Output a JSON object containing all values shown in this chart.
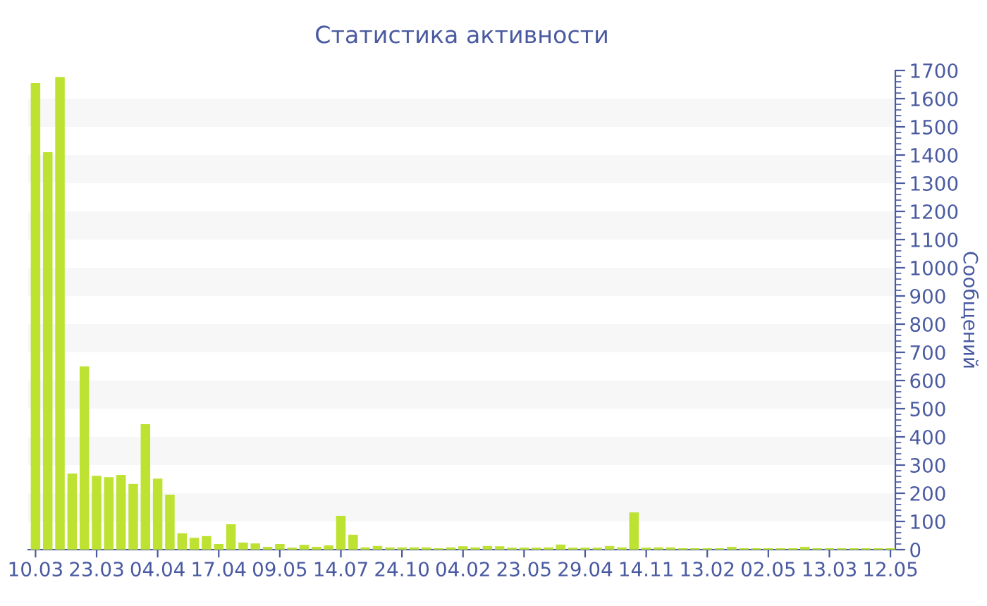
{
  "chart_data": {
    "type": "bar",
    "title": "Статистика активности",
    "ylabel": "Сообщений",
    "categories": [
      "10.03",
      null,
      null,
      null,
      null,
      "23.03",
      null,
      null,
      null,
      null,
      "04.04",
      null,
      null,
      null,
      null,
      "17.04",
      null,
      null,
      null,
      null,
      "09.05",
      null,
      null,
      null,
      null,
      "14.07",
      null,
      null,
      null,
      null,
      "24.10",
      null,
      null,
      null,
      null,
      "04.02",
      null,
      null,
      null,
      null,
      "23.05",
      null,
      null,
      null,
      null,
      "29.04",
      null,
      null,
      null,
      null,
      "14.11",
      null,
      null,
      null,
      null,
      "13.02",
      null,
      null,
      null,
      null,
      "02.05",
      null,
      null,
      null,
      null,
      "13.03",
      null,
      null,
      null,
      null,
      "12.05"
    ],
    "values": [
      1655,
      1410,
      1677,
      270,
      650,
      262,
      257,
      265,
      233,
      445,
      252,
      195,
      58,
      42,
      48,
      20,
      90,
      25,
      22,
      10,
      20,
      7,
      17,
      10,
      15,
      120,
      53,
      8,
      13,
      8,
      8,
      8,
      8,
      5,
      8,
      12,
      8,
      13,
      12,
      7,
      7,
      7,
      8,
      18,
      7,
      7,
      7,
      13,
      8,
      132,
      7,
      8,
      8,
      5,
      5,
      5,
      5,
      10,
      5,
      5,
      5,
      5,
      5,
      10,
      5,
      5,
      5,
      5,
      5,
      5,
      5
    ],
    "color": "#bde232",
    "ylim": [
      0,
      1700
    ],
    "yticks": [
      0,
      100,
      200,
      300,
      400,
      500,
      600,
      700,
      800,
      900,
      1000,
      1100,
      1200,
      1300,
      1400,
      1500,
      1600,
      1700
    ],
    "bands": [
      {
        "axis": "y",
        "from": 100,
        "to": 200,
        "color": "#f7f7f7"
      },
      {
        "axis": "y",
        "from": 300,
        "to": 400,
        "color": "#f7f7f7"
      },
      {
        "axis": "y",
        "from": 500,
        "to": 600,
        "color": "#f7f7f7"
      },
      {
        "axis": "y",
        "from": 700,
        "to": 800,
        "color": "#f7f7f7"
      },
      {
        "axis": "y",
        "from": 900,
        "to": 1000,
        "color": "#f7f7f7"
      },
      {
        "axis": "y",
        "from": 1100,
        "to": 1200,
        "color": "#f7f7f7"
      },
      {
        "axis": "y",
        "from": 1300,
        "to": 1400,
        "color": "#f7f7f7"
      },
      {
        "axis": "y",
        "from": 1500,
        "to": 1600,
        "color": "#f7f7f7"
      }
    ]
  }
}
